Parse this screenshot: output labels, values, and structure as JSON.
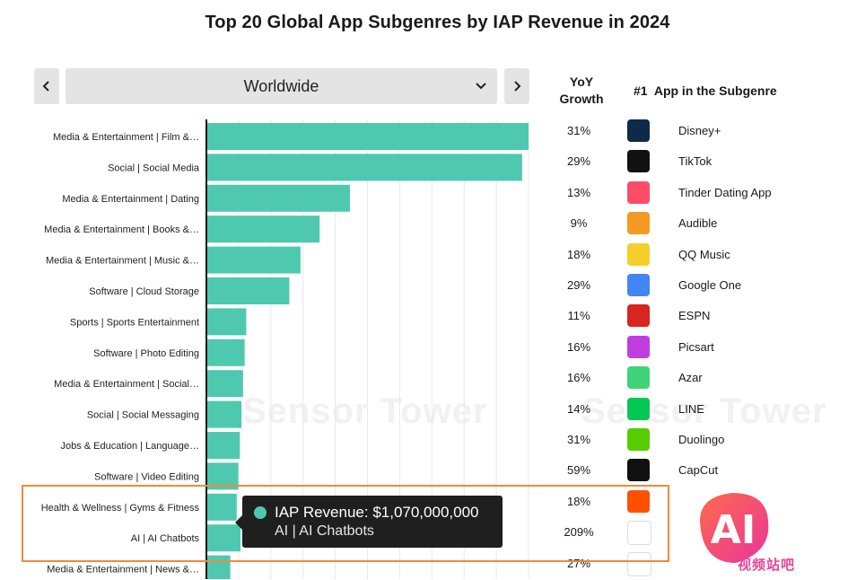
{
  "title": "Top 20 Global App Subgenres by IAP Revenue in 2024",
  "region_selector": {
    "value": "Worldwide"
  },
  "columns": {
    "yoy_line1": "YoY",
    "yoy_line2": "Growth",
    "top_app": "#1  App in the Subgenre"
  },
  "watermark": "Sensor Tower",
  "chart_data": {
    "type": "bar",
    "orientation": "horizontal",
    "categories": [
      "Media & Entertainment | Film &…",
      "Social | Social Media",
      "Media & Entertainment | Dating",
      "Media & Entertainment | Books &…",
      "Media & Entertainment | Music &…",
      "Software | Cloud Storage",
      "Sports | Sports Entertainment",
      "Software | Photo Editing",
      "Media & Entertainment | Social…",
      "Social | Social Messaging",
      "Jobs & Education | Language…",
      "Software | Video Editing",
      "Health & Wellness | Gyms & Fitness",
      "AI | AI Chatbots",
      "Media & Entertainment | News &…"
    ],
    "values": [
      10.1,
      9.9,
      4.5,
      3.55,
      2.95,
      2.6,
      1.25,
      1.2,
      1.15,
      1.1,
      1.05,
      1.0,
      0.95,
      1.07,
      0.75
    ],
    "unit": "billion USD (IAP revenue, estimated from bar length)",
    "xlim": [
      0,
      10.1
    ],
    "grid": true,
    "highlight_color": "#4ec9b0"
  },
  "rows": [
    {
      "yoy": "31%",
      "app": "Disney+",
      "icon": "disney-plus-icon",
      "color": "#0e2a4a"
    },
    {
      "yoy": "29%",
      "app": "TikTok",
      "icon": "tiktok-icon",
      "color": "#111111"
    },
    {
      "yoy": "13%",
      "app": "Tinder Dating App",
      "icon": "tinder-icon",
      "color": "#fd4c6a"
    },
    {
      "yoy": "9%",
      "app": "Audible",
      "icon": "audible-icon",
      "color": "#f59a23"
    },
    {
      "yoy": "18%",
      "app": "QQ Music",
      "icon": "qq-music-icon",
      "color": "#f5cf2b"
    },
    {
      "yoy": "29%",
      "app": "Google One",
      "icon": "google-one-icon",
      "color": "#4285f4"
    },
    {
      "yoy": "11%",
      "app": "ESPN",
      "icon": "espn-icon",
      "color": "#d7261d"
    },
    {
      "yoy": "16%",
      "app": "Picsart",
      "icon": "picsart-icon",
      "color": "#c03ee0"
    },
    {
      "yoy": "16%",
      "app": "Azar",
      "icon": "azar-icon",
      "color": "#3fd47a"
    },
    {
      "yoy": "14%",
      "app": "LINE",
      "icon": "line-icon",
      "color": "#06c755"
    },
    {
      "yoy": "31%",
      "app": "Duolingo",
      "icon": "duolingo-icon",
      "color": "#58cc02"
    },
    {
      "yoy": "59%",
      "app": "CapCut",
      "icon": "capcut-icon",
      "color": "#111111"
    },
    {
      "yoy": "18%",
      "app": "",
      "icon": "strava-icon",
      "color": "#fc5200"
    },
    {
      "yoy": "209%",
      "app": "",
      "icon": "chatgpt-icon",
      "color": "#ffffff"
    },
    {
      "yoy": "27%",
      "app": "",
      "icon": "nytimes-icon",
      "color": "#ffffff"
    }
  ],
  "tooltip": {
    "line1": "IAP Revenue: $1,070,000,000",
    "line2": "AI | AI Chatbots"
  },
  "badge": {
    "text": "AI",
    "caption": "视频站吧"
  }
}
